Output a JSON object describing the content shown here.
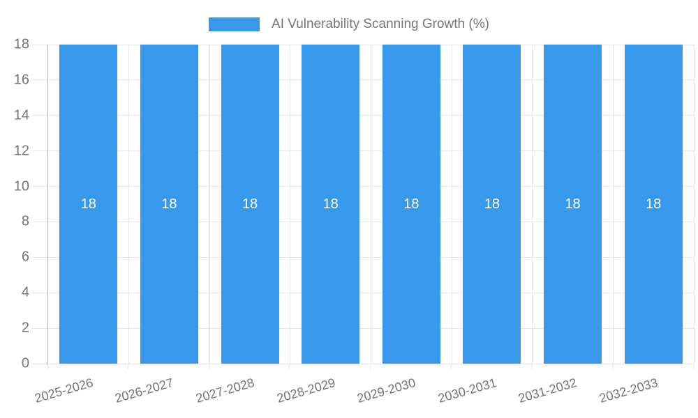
{
  "chart_data": {
    "type": "bar",
    "title": "AI Vulnerability Scanning Growth (%)",
    "categories": [
      "2025-2026",
      "2026-2027",
      "2027-2028",
      "2028-2029",
      "2029-2030",
      "2030-2031",
      "2031-2032",
      "2032-2033"
    ],
    "values": [
      18,
      18,
      18,
      18,
      18,
      18,
      18,
      18
    ],
    "value_labels": [
      "18",
      "18",
      "18",
      "18",
      "18",
      "18",
      "18",
      "18"
    ],
    "xlabel": "",
    "ylabel": "",
    "ylim": [
      0,
      18
    ],
    "ytick_step": 2,
    "ytick_labels": [
      "0",
      "2",
      "4",
      "6",
      "8",
      "10",
      "12",
      "14",
      "16",
      "18"
    ],
    "grid": true,
    "legend": {
      "position": "top",
      "label": "AI Vulnerability Scanning Growth (%)"
    },
    "x_label_rotation_deg": -16,
    "colors": {
      "bar": "#3899ec",
      "grid": "#e6e6e6",
      "axis": "#b3b3b3",
      "tick_text": "#757575",
      "value_label": "#ffffff",
      "background": "#ffffff"
    }
  }
}
